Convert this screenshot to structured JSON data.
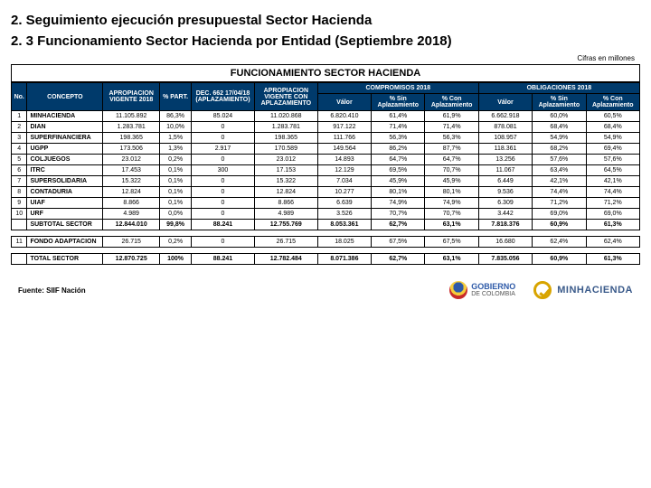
{
  "heading1": "2. Seguimiento ejecución presupuestal Sector Hacienda",
  "heading2": "2. 3 Funcionamiento Sector Hacienda por Entidad (Septiembre 2018)",
  "cifras": "Cifras en millones",
  "table_title": "FUNCIONAMIENTO SECTOR HACIENDA",
  "headers": {
    "no": "No.",
    "concepto": "CONCEPTO",
    "apropiacion": "APROPIACION VIGENTE 2018",
    "part": "% PART.",
    "dec": "DEC. 662 17/04/18 (APLAZAMIENTO)",
    "apvc": "APROPIACION VIGENTE CON APLAZAMIENTO",
    "compromisos": "COMPROMISOS 2018",
    "obligaciones": "OBLIGACIONES 2018",
    "valor": "Válor",
    "sin": "% Sin Aplazamiento",
    "con": "% Con Aplazamiento"
  },
  "rows": [
    {
      "no": "1",
      "concepto": "MINHACIENDA",
      "ap": "11.105.892",
      "part": "86,3%",
      "dec": "85.024",
      "apvc": "11.020.868",
      "cv": "6.820.410",
      "cs": "61,4%",
      "cc": "61,9%",
      "ov": "6.662.918",
      "os": "60,0%",
      "oc": "60,5%"
    },
    {
      "no": "2",
      "concepto": "DIAN",
      "ap": "1.283.781",
      "part": "10,0%",
      "dec": "0",
      "apvc": "1.283.781",
      "cv": "917.122",
      "cs": "71,4%",
      "cc": "71,4%",
      "ov": "878.081",
      "os": "68,4%",
      "oc": "68,4%"
    },
    {
      "no": "3",
      "concepto": "SUPERFINANCIERA",
      "ap": "198.365",
      "part": "1,5%",
      "dec": "0",
      "apvc": "198.365",
      "cv": "111.766",
      "cs": "56,3%",
      "cc": "56,3%",
      "ov": "108.957",
      "os": "54,9%",
      "oc": "54,9%"
    },
    {
      "no": "4",
      "concepto": "UGPP",
      "ap": "173.506",
      "part": "1,3%",
      "dec": "2.917",
      "apvc": "170.589",
      "cv": "149.564",
      "cs": "86,2%",
      "cc": "87,7%",
      "ov": "118.361",
      "os": "68,2%",
      "oc": "69,4%"
    },
    {
      "no": "5",
      "concepto": "COLJUEGOS",
      "ap": "23.012",
      "part": "0,2%",
      "dec": "0",
      "apvc": "23.012",
      "cv": "14.893",
      "cs": "64,7%",
      "cc": "64,7%",
      "ov": "13.256",
      "os": "57,6%",
      "oc": "57,6%"
    },
    {
      "no": "6",
      "concepto": "ITRC",
      "ap": "17.453",
      "part": "0,1%",
      "dec": "300",
      "apvc": "17.153",
      "cv": "12.129",
      "cs": "69,5%",
      "cc": "70,7%",
      "ov": "11.067",
      "os": "63,4%",
      "oc": "64,5%"
    },
    {
      "no": "7",
      "concepto": "SUPERSOLIDARIA",
      "ap": "15.322",
      "part": "0,1%",
      "dec": "0",
      "apvc": "15.322",
      "cv": "7.034",
      "cs": "45,9%",
      "cc": "45,9%",
      "ov": "6.449",
      "os": "42,1%",
      "oc": "42,1%"
    },
    {
      "no": "8",
      "concepto": "CONTADURIA",
      "ap": "12.824",
      "part": "0,1%",
      "dec": "0",
      "apvc": "12.824",
      "cv": "10.277",
      "cs": "80,1%",
      "cc": "80,1%",
      "ov": "9.536",
      "os": "74,4%",
      "oc": "74,4%"
    },
    {
      "no": "9",
      "concepto": "UIAF",
      "ap": "8.866",
      "part": "0,1%",
      "dec": "0",
      "apvc": "8.866",
      "cv": "6.639",
      "cs": "74,9%",
      "cc": "74,9%",
      "ov": "6.309",
      "os": "71,2%",
      "oc": "71,2%"
    },
    {
      "no": "10",
      "concepto": "URF",
      "ap": "4.989",
      "part": "0,0%",
      "dec": "0",
      "apvc": "4.989",
      "cv": "3.526",
      "cs": "70,7%",
      "cc": "70,7%",
      "ov": "3.442",
      "os": "69,0%",
      "oc": "69,0%"
    }
  ],
  "subtotal": {
    "no": "",
    "concepto": "SUBTOTAL SECTOR",
    "ap": "12.844.010",
    "part": "99,8%",
    "dec": "88.241",
    "apvc": "12.755.769",
    "cv": "8.053.361",
    "cs": "62,7%",
    "cc": "63,1%",
    "ov": "7.818.376",
    "os": "60,9%",
    "oc": "61,3%"
  },
  "fondo": {
    "no": "11",
    "concepto": "FONDO ADAPTACION",
    "ap": "26.715",
    "part": "0,2%",
    "dec": "0",
    "apvc": "26.715",
    "cv": "18.025",
    "cs": "67,5%",
    "cc": "67,5%",
    "ov": "16.680",
    "os": "62,4%",
    "oc": "62,4%"
  },
  "total": {
    "no": "",
    "concepto": "TOTAL SECTOR",
    "ap": "12.870.725",
    "part": "100%",
    "dec": "88.241",
    "apvc": "12.782.484",
    "cv": "8.071.386",
    "cs": "62,7%",
    "cc": "63,1%",
    "ov": "7.835.056",
    "os": "60,9%",
    "oc": "61,3%"
  },
  "fuente": "Fuente: SIIF Nación",
  "gob_line1": "GOBIERNO",
  "gob_line2": "DE COLOMBIA",
  "min": "MINHACIENDA"
}
